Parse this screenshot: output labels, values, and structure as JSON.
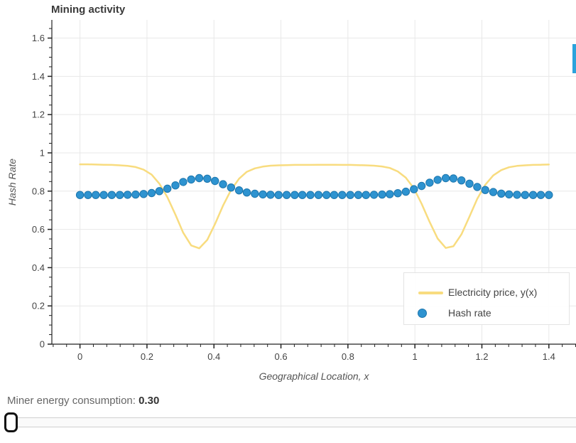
{
  "controls": {
    "slider_label": "Miner energy consumption: ",
    "slider_value": "0.30"
  },
  "colors": {
    "axis": "#222222",
    "grid": "#e8e8e8",
    "tick_label": "#444444",
    "scroll_thumb": "#2ba3dc"
  },
  "chart_data": {
    "type": "line+scatter",
    "title": "Mining activity",
    "xlabel": "Geographical Location, x",
    "ylabel": "Hash Rate",
    "x_range": [
      -0.084,
      1.481
    ],
    "y_range": [
      0,
      1.695
    ],
    "x_ticks": [
      0,
      0.2,
      0.4,
      0.6,
      0.8,
      1,
      1.2,
      1.4
    ],
    "y_ticks": [
      0,
      0.2,
      0.4,
      0.6,
      0.8,
      1,
      1.2,
      1.4,
      1.6
    ],
    "grid": true,
    "legend_position": "bottom_right",
    "x": [
      0.0,
      0.024,
      0.047,
      0.071,
      0.095,
      0.119,
      0.142,
      0.166,
      0.19,
      0.214,
      0.237,
      0.261,
      0.285,
      0.308,
      0.332,
      0.356,
      0.38,
      0.403,
      0.427,
      0.451,
      0.475,
      0.498,
      0.522,
      0.546,
      0.569,
      0.593,
      0.617,
      0.641,
      0.664,
      0.688,
      0.712,
      0.736,
      0.759,
      0.783,
      0.807,
      0.831,
      0.854,
      0.878,
      0.902,
      0.925,
      0.949,
      0.973,
      0.997,
      1.02,
      1.044,
      1.068,
      1.092,
      1.115,
      1.139,
      1.163,
      1.186,
      1.21,
      1.234,
      1.258,
      1.281,
      1.305,
      1.329,
      1.353,
      1.376,
      1.4
    ],
    "series": [
      {
        "name": "Electricity price, y(x)",
        "type": "line",
        "color": "#f8dc7f",
        "values": [
          0.94,
          0.94,
          0.939,
          0.938,
          0.937,
          0.935,
          0.932,
          0.926,
          0.912,
          0.886,
          0.839,
          0.768,
          0.677,
          0.583,
          0.516,
          0.501,
          0.545,
          0.628,
          0.724,
          0.806,
          0.865,
          0.901,
          0.919,
          0.928,
          0.933,
          0.935,
          0.936,
          0.937,
          0.937,
          0.937,
          0.938,
          0.938,
          0.938,
          0.937,
          0.937,
          0.936,
          0.935,
          0.933,
          0.929,
          0.921,
          0.903,
          0.87,
          0.814,
          0.734,
          0.639,
          0.552,
          0.503,
          0.512,
          0.574,
          0.667,
          0.759,
          0.833,
          0.882,
          0.91,
          0.925,
          0.932,
          0.935,
          0.937,
          0.938,
          0.939
        ]
      },
      {
        "name": "Hash rate",
        "type": "scatter",
        "color": "#2e93d0",
        "edge_color": "#1c76ad",
        "values": [
          0.78,
          0.78,
          0.78,
          0.78,
          0.78,
          0.78,
          0.781,
          0.782,
          0.785,
          0.79,
          0.8,
          0.813,
          0.83,
          0.848,
          0.861,
          0.868,
          0.865,
          0.853,
          0.836,
          0.819,
          0.804,
          0.793,
          0.786,
          0.783,
          0.781,
          0.78,
          0.78,
          0.78,
          0.78,
          0.78,
          0.78,
          0.78,
          0.78,
          0.78,
          0.78,
          0.78,
          0.78,
          0.781,
          0.782,
          0.784,
          0.789,
          0.797,
          0.81,
          0.827,
          0.844,
          0.859,
          0.868,
          0.866,
          0.856,
          0.839,
          0.822,
          0.806,
          0.795,
          0.787,
          0.783,
          0.781,
          0.78,
          0.78,
          0.78,
          0.78
        ]
      }
    ]
  }
}
